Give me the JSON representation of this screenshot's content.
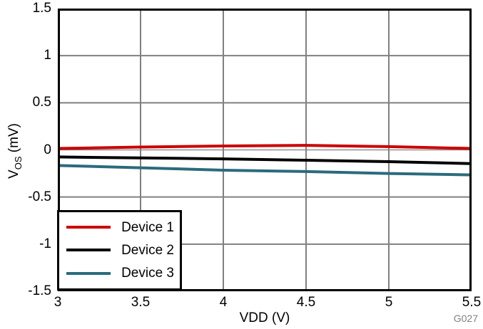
{
  "chart_data": {
    "type": "line",
    "title": "",
    "xlabel": "VDD (V)",
    "ylabel": "VOS (mV)",
    "ylabel_parts": {
      "pre": "V",
      "sub": "OS",
      "post": " (mV)"
    },
    "code": "G027",
    "xlim": [
      3,
      5.5
    ],
    "ylim": [
      -1.5,
      1.5
    ],
    "x_ticks": [
      "3",
      "3.5",
      "4",
      "4.5",
      "5",
      "5.5"
    ],
    "y_ticks": [
      "1.5",
      "1",
      "0.5",
      "0",
      "-0.5",
      "-1",
      "-1.5"
    ],
    "grid": true,
    "grid_color": "#808080",
    "axis_color": "#000000",
    "background_color": "#FFFFFF",
    "legend_position": "lower-left",
    "x": [
      3,
      3.5,
      4,
      4.5,
      5,
      5.5
    ],
    "series": [
      {
        "name": "Device 1",
        "color": "#CC0000",
        "values": [
          0.015,
          0.03,
          0.042,
          0.048,
          0.035,
          0.015
        ]
      },
      {
        "name": "Device 2",
        "color": "#000000",
        "values": [
          -0.075,
          -0.085,
          -0.095,
          -0.11,
          -0.125,
          -0.145
        ]
      },
      {
        "name": "Device 3",
        "color": "#2A6B7C",
        "values": [
          -0.165,
          -0.19,
          -0.215,
          -0.23,
          -0.25,
          -0.265
        ]
      }
    ]
  }
}
